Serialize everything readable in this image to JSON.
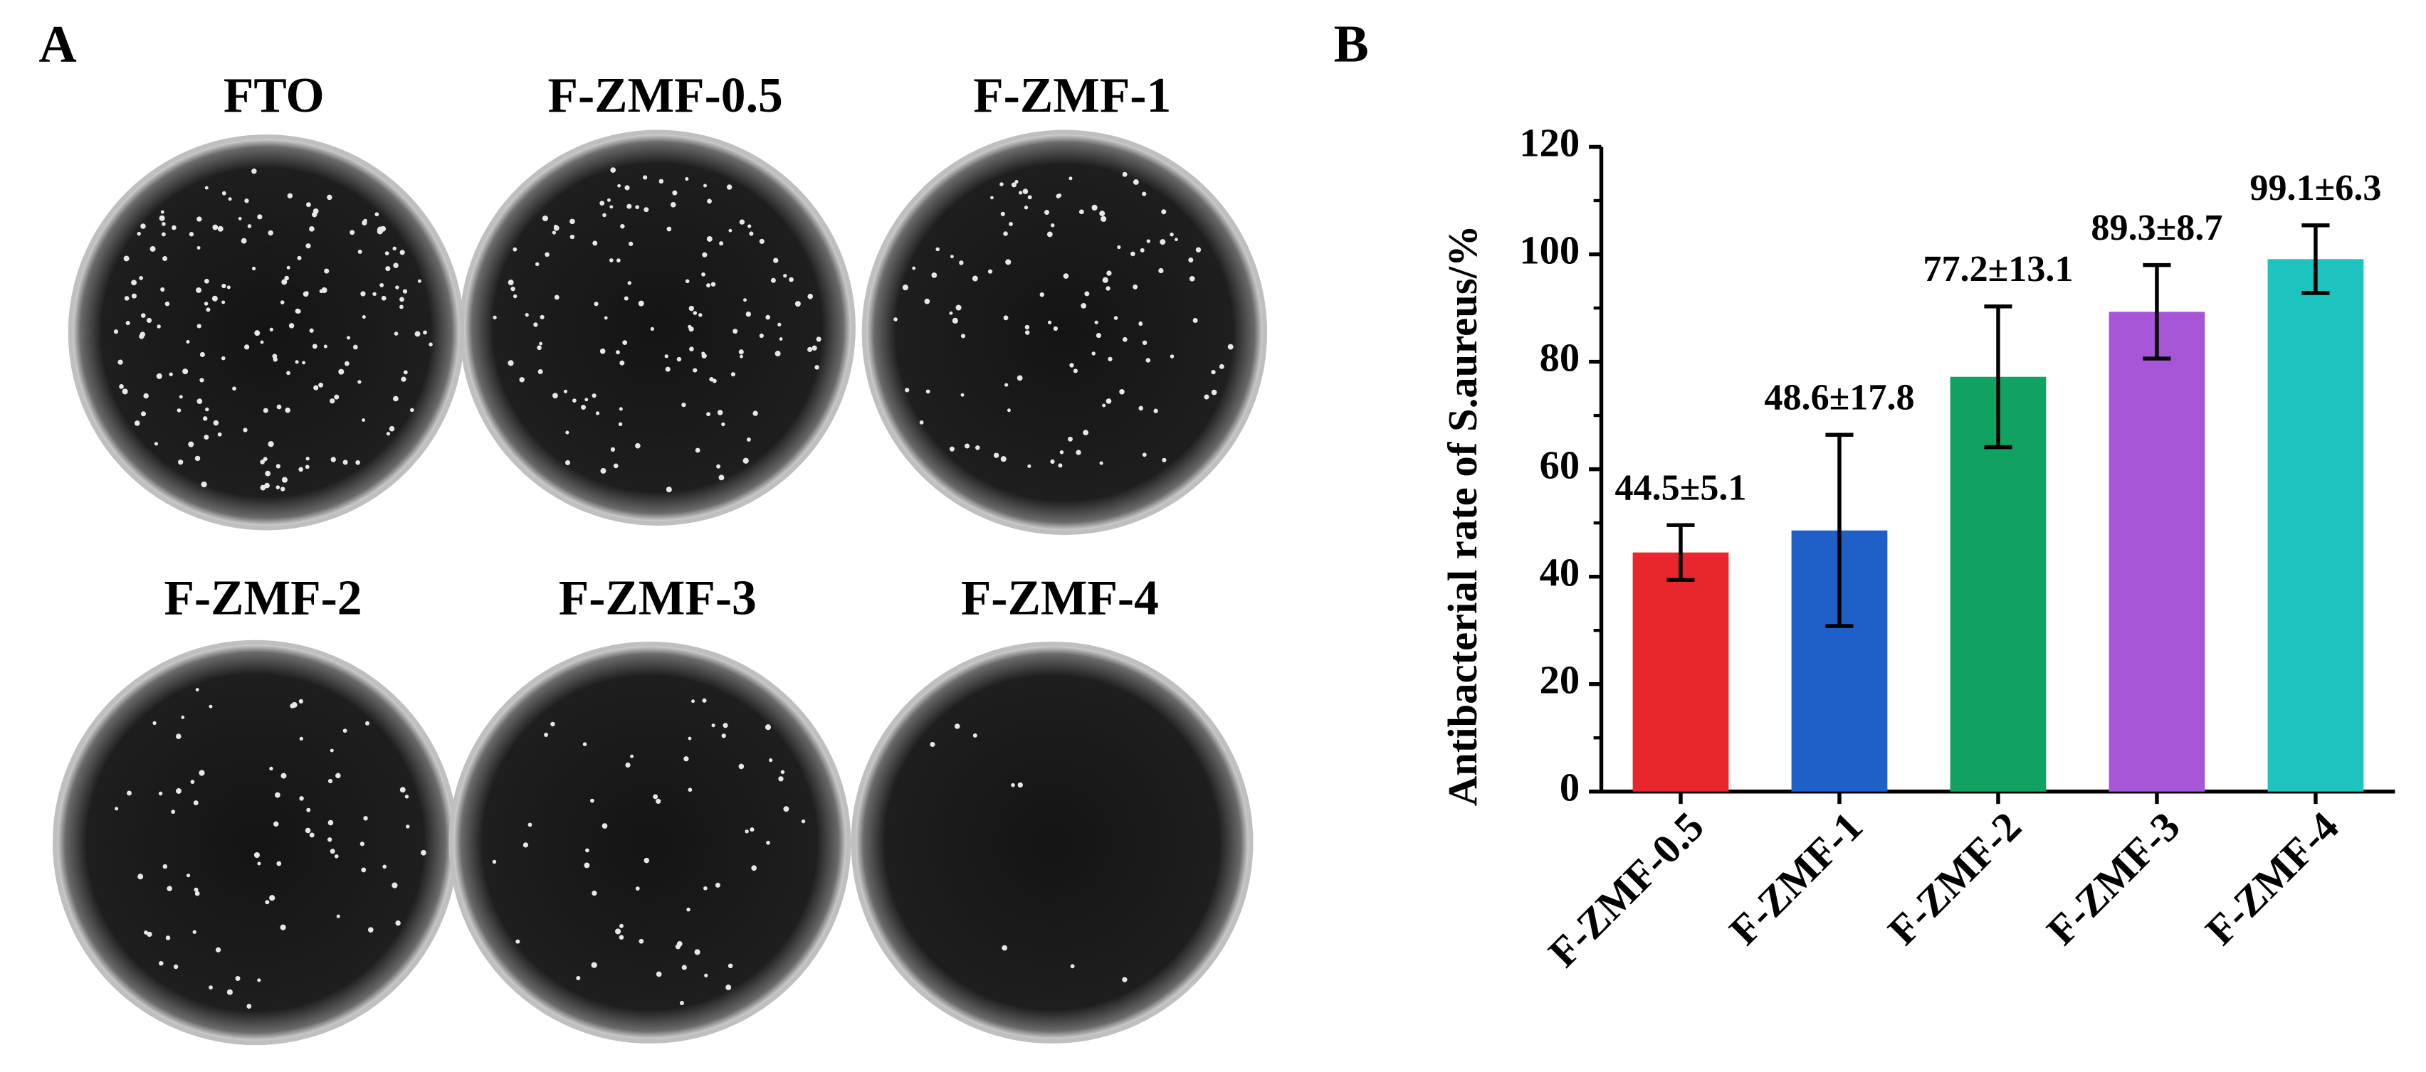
{
  "panel_a": {
    "label": "A",
    "dishes": [
      "FTO",
      "F-ZMF-0.5",
      "F-ZMF-1",
      "F-ZMF-2",
      "F-ZMF-3",
      "F-ZMF-4"
    ]
  },
  "chart_data": {
    "type": "bar",
    "panel_label": "B",
    "y_label": "Antibacterial rate of S.aureus/%",
    "categories": [
      "F-ZMF-0.5",
      "F-ZMF-1",
      "F-ZMF-2",
      "F-ZMF-3",
      "F-ZMF-4"
    ],
    "values": [
      44.5,
      48.6,
      77.2,
      89.3,
      99.1
    ],
    "errors": [
      5.1,
      17.8,
      13.1,
      8.7,
      6.3
    ],
    "value_labels": [
      "44.5±5.1",
      "48.6±17.8",
      "77.2±13.1",
      "89.3±8.7",
      "99.1±6.3"
    ],
    "colors": [
      "#e8262b",
      "#1f5fc8",
      "#11a262",
      "#a656d6",
      "#1dc3bf"
    ],
    "ylim": [
      0,
      120
    ],
    "yticks": [
      0,
      20,
      40,
      60,
      80,
      100,
      120
    ]
  }
}
